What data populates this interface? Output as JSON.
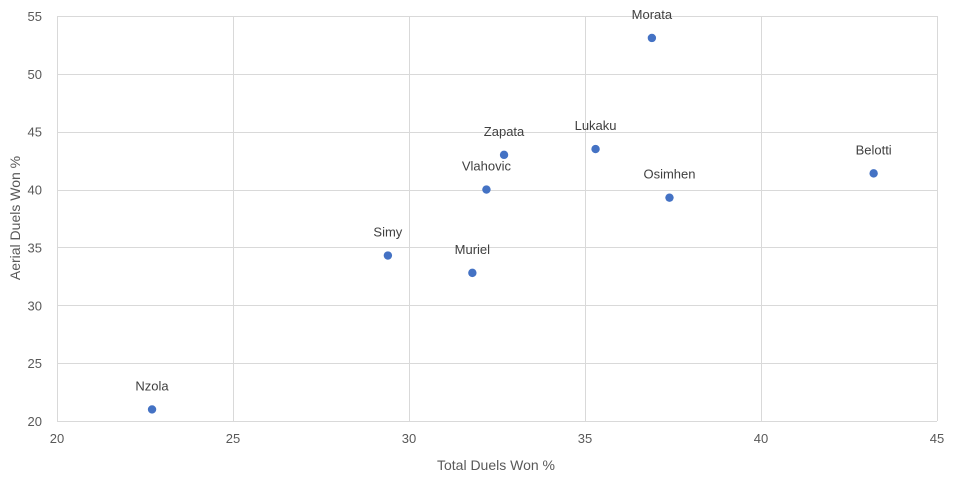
{
  "chart_data": {
    "type": "scatter",
    "title": "",
    "xlabel": "Total Duels Won %",
    "ylabel": "Aerial Duels Won %",
    "xlim": [
      20,
      45
    ],
    "ylim": [
      20,
      55
    ],
    "x_ticks": [
      "20",
      "25",
      "30",
      "35",
      "40",
      "45"
    ],
    "y_ticks": [
      "20",
      "25",
      "30",
      "35",
      "40",
      "45",
      "50",
      "55"
    ],
    "grid": true,
    "legend": "none",
    "marker_color": "#4472c4",
    "points": [
      {
        "label": "Nzola",
        "x": 22.7,
        "y": 21.0
      },
      {
        "label": "Simy",
        "x": 29.4,
        "y": 34.3
      },
      {
        "label": "Muriel",
        "x": 31.8,
        "y": 32.8
      },
      {
        "label": "Vlahovic",
        "x": 32.2,
        "y": 40.0
      },
      {
        "label": "Zapata",
        "x": 32.7,
        "y": 43.0
      },
      {
        "label": "Lukaku",
        "x": 35.3,
        "y": 43.5
      },
      {
        "label": "Morata",
        "x": 36.9,
        "y": 53.1
      },
      {
        "label": "Osimhen",
        "x": 37.4,
        "y": 39.3
      },
      {
        "label": "Belotti",
        "x": 43.2,
        "y": 41.4
      }
    ]
  }
}
